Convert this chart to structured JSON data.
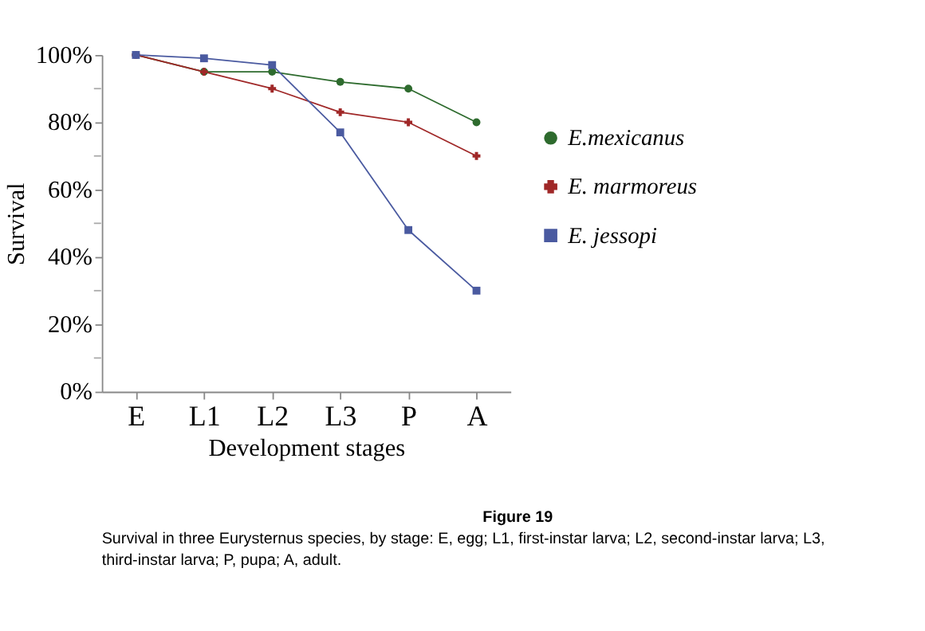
{
  "chart_data": {
    "type": "line",
    "xlabel": "Development stages",
    "ylabel": "Survival",
    "categories": [
      "E",
      "L1",
      "L2",
      "L3",
      "P",
      "A"
    ],
    "series": [
      {
        "name": "E.mexicanus",
        "color": "#2e6b2e",
        "marker": "circle",
        "values": [
          100,
          95,
          95,
          92,
          90,
          80
        ]
      },
      {
        "name": "E. marmoreus",
        "color": "#a02828",
        "marker": "cross",
        "values": [
          100,
          95,
          90,
          83,
          80,
          70
        ]
      },
      {
        "name": "E. jessopi",
        "color": "#4a5aa0",
        "marker": "square",
        "values": [
          100,
          99,
          97,
          77,
          48,
          30
        ]
      }
    ],
    "ylim": [
      0,
      100
    ],
    "yticks": [
      {
        "value": 0,
        "label": "0%"
      },
      {
        "value": 10,
        "label": null
      },
      {
        "value": 20,
        "label": "20%"
      },
      {
        "value": 30,
        "label": null
      },
      {
        "value": 40,
        "label": "40%"
      },
      {
        "value": 50,
        "label": null
      },
      {
        "value": 60,
        "label": "60%"
      },
      {
        "value": 70,
        "label": null
      },
      {
        "value": 80,
        "label": "80%"
      },
      {
        "value": 90,
        "label": null
      },
      {
        "value": 100,
        "label": "100%"
      }
    ],
    "grid": false,
    "legend": "right",
    "line_style": "solid",
    "annotations": [
      "Figure 19",
      "Survival in three Eurysternus species, by stage: E, egg; L1, first-instar larva; L2, second-instar larva; L3, third-instar larva; P, pupa; A, adult."
    ]
  }
}
